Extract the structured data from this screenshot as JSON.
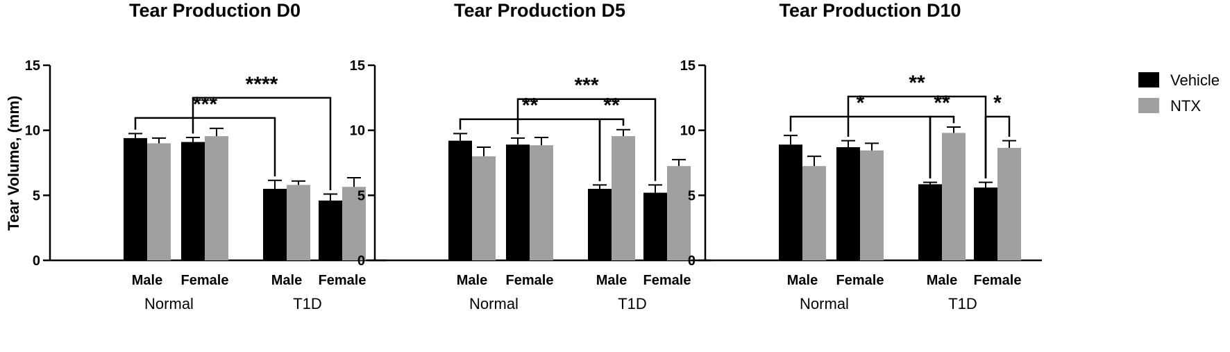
{
  "figure": {
    "ylabel": "Tear Volume, (mm)",
    "legend": [
      "Vehicle",
      "NTX"
    ]
  },
  "chart_data": [
    {
      "type": "bar",
      "title": "Tear Production D0",
      "ylabel": "Tear Volume, (mm)",
      "ylim": [
        0,
        15
      ],
      "yticks": [
        0,
        5,
        10,
        15
      ],
      "groups": [
        "Normal",
        "T1D"
      ],
      "categories": [
        "Male",
        "Female",
        "Male",
        "Female"
      ],
      "series": [
        {
          "name": "Vehicle",
          "color": "#000000",
          "values": [
            9.4,
            9.1,
            5.5,
            4.6
          ],
          "errors": [
            0.35,
            0.35,
            0.65,
            0.5
          ]
        },
        {
          "name": "NTX",
          "color": "#a0a0a3",
          "values": [
            9.0,
            9.55,
            5.8,
            5.65
          ],
          "errors": [
            0.4,
            0.6,
            0.3,
            0.7
          ]
        }
      ],
      "significance": [
        {
          "from": [
            0,
            "Vehicle"
          ],
          "to": [
            2,
            "Vehicle"
          ],
          "label": "***"
        },
        {
          "from": [
            1,
            "Vehicle"
          ],
          "to": [
            3,
            "Vehicle"
          ],
          "label": "****"
        }
      ],
      "grid": false,
      "legend_position": "right"
    },
    {
      "type": "bar",
      "title": "Tear Production D5",
      "ylabel": "",
      "ylim": [
        0,
        15
      ],
      "yticks": [
        0,
        5,
        10,
        15
      ],
      "groups": [
        "Normal",
        "T1D"
      ],
      "categories": [
        "Male",
        "Female",
        "Male",
        "Female"
      ],
      "series": [
        {
          "name": "Vehicle",
          "color": "#000000",
          "values": [
            9.2,
            8.9,
            5.5,
            5.2
          ],
          "errors": [
            0.55,
            0.5,
            0.3,
            0.6
          ]
        },
        {
          "name": "NTX",
          "color": "#a0a0a3",
          "values": [
            8.0,
            8.85,
            9.55,
            7.25
          ],
          "errors": [
            0.7,
            0.6,
            0.5,
            0.5
          ]
        }
      ],
      "significance": [
        {
          "from": [
            0,
            "Vehicle"
          ],
          "to": [
            2,
            "Vehicle"
          ],
          "label": "**"
        },
        {
          "from": [
            2,
            "Vehicle"
          ],
          "to": [
            2,
            "NTX"
          ],
          "label": "**"
        },
        {
          "from": [
            1,
            "Vehicle"
          ],
          "to": [
            3,
            "Vehicle"
          ],
          "label": "***"
        }
      ],
      "grid": false,
      "legend_position": "right"
    },
    {
      "type": "bar",
      "title": "Tear Production D10",
      "ylabel": "",
      "ylim": [
        0,
        15
      ],
      "yticks": [
        0,
        5,
        10,
        15
      ],
      "groups": [
        "Normal",
        "T1D"
      ],
      "categories": [
        "Male",
        "Female",
        "Male",
        "Female"
      ],
      "series": [
        {
          "name": "Vehicle",
          "color": "#000000",
          "values": [
            8.9,
            8.7,
            5.85,
            5.6
          ],
          "errors": [
            0.7,
            0.5,
            0.15,
            0.4
          ]
        },
        {
          "name": "NTX",
          "color": "#a0a0a3",
          "values": [
            7.25,
            8.45,
            9.8,
            8.65
          ],
          "errors": [
            0.75,
            0.55,
            0.45,
            0.55
          ]
        }
      ],
      "significance": [
        {
          "from": [
            0,
            "Vehicle"
          ],
          "to": [
            2,
            "Vehicle"
          ],
          "label": "*"
        },
        {
          "from": [
            2,
            "Vehicle"
          ],
          "to": [
            2,
            "NTX"
          ],
          "label": "**"
        },
        {
          "from": [
            3,
            "Vehicle"
          ],
          "to": [
            3,
            "NTX"
          ],
          "label": "*"
        },
        {
          "from": [
            1,
            "Vehicle"
          ],
          "to": [
            3,
            "Vehicle"
          ],
          "label": "**"
        }
      ],
      "grid": false,
      "legend_position": "right"
    }
  ]
}
